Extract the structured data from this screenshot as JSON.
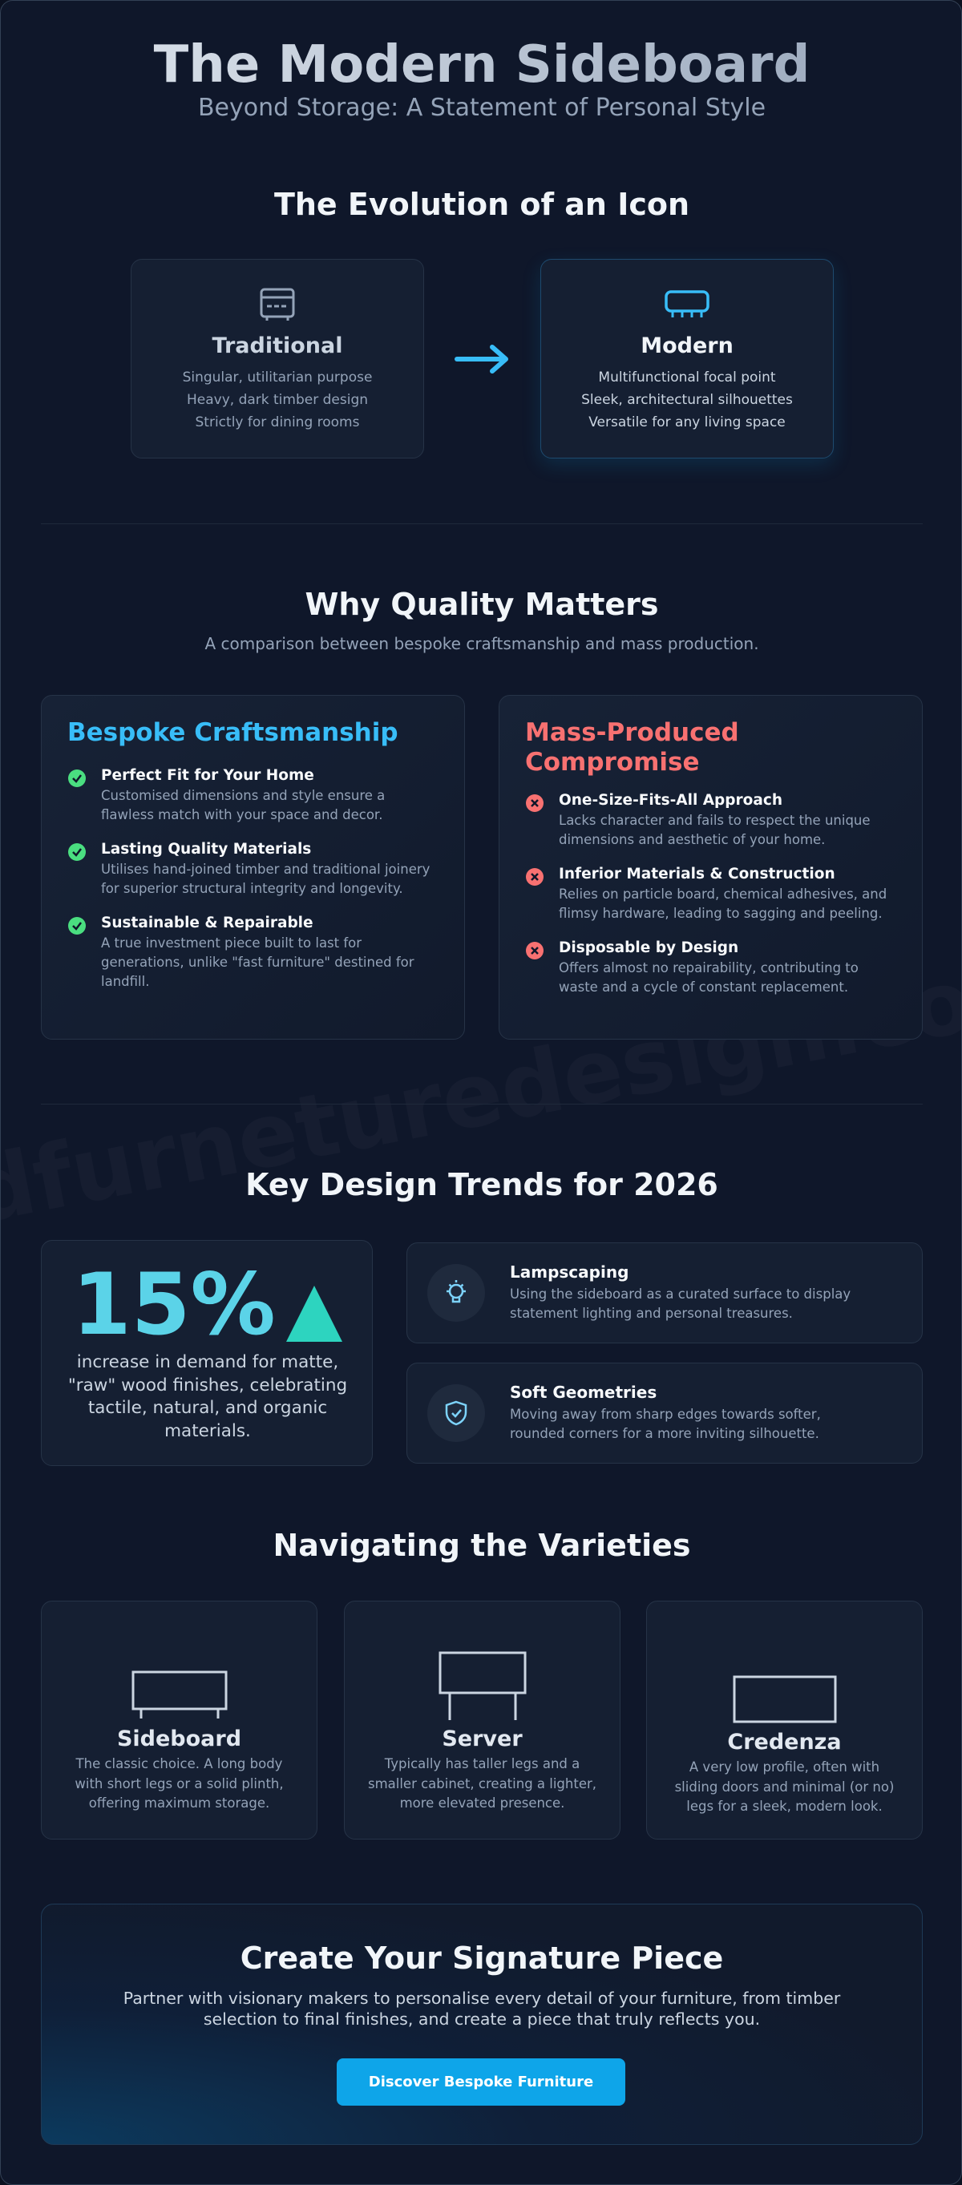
{
  "header": {
    "title": "The Modern Sideboard",
    "subtitle": "Beyond Storage: A Statement of Personal Style"
  },
  "watermark": "andfurneturedesign.co.za",
  "evolution": {
    "title": "The Evolution of an Icon",
    "cards": [
      {
        "title": "Traditional",
        "points": [
          "Singular, utilitarian purpose",
          "Heavy, dark timber design",
          "Strictly for dining rooms"
        ]
      },
      {
        "title": "Modern",
        "points": [
          "Multifunctional focal point",
          "Sleek, architectural silhouettes",
          "Versatile for any living space"
        ]
      }
    ]
  },
  "quality": {
    "title": "Why Quality Matters",
    "subtitle": "A comparison between bespoke craftsmanship and mass production.",
    "columns": [
      {
        "title": "Bespoke Craftsmanship",
        "items": [
          {
            "title": "Perfect Fit for Your Home",
            "text": "Customised dimensions and style ensure a flawless match with your space and decor."
          },
          {
            "title": "Lasting Quality Materials",
            "text": "Utilises hand-joined timber and traditional joinery for superior structural integrity and longevity."
          },
          {
            "title": "Sustainable & Repairable",
            "text": "A true investment piece built to last for generations, unlike \"fast furniture\" destined for landfill."
          }
        ]
      },
      {
        "title": "Mass-Produced Compromise",
        "items": [
          {
            "title": "One-Size-Fits-All Approach",
            "text": "Lacks character and fails to respect the unique dimensions and aesthetic of your home."
          },
          {
            "title": "Inferior Materials & Construction",
            "text": "Relies on particle board, chemical adhesives, and flimsy hardware, leading to sagging and peeling."
          },
          {
            "title": "Disposable by Design",
            "text": "Offers almost no repairability, contributing to waste and a cycle of constant replacement."
          }
        ]
      }
    ]
  },
  "trends": {
    "title": "Key Design Trends for 2026",
    "stat": {
      "value": "15%",
      "text": "increase in demand for matte, \"raw\" wood finishes, celebrating tactile, natural, and organic materials."
    },
    "items": [
      {
        "title": "Lampscaping",
        "text": "Using the sideboard as a curated surface to display statement lighting and personal treasures."
      },
      {
        "title": "Soft Geometries",
        "text": "Moving away from sharp edges towards softer, rounded corners for a more inviting silhouette."
      }
    ]
  },
  "varieties": {
    "title": "Navigating the Varieties",
    "items": [
      {
        "name": "Sideboard",
        "text": "The classic choice. A long body with short legs or a solid plinth, offering maximum storage."
      },
      {
        "name": "Server",
        "text": "Typically has taller legs and a smaller cabinet, creating a lighter, more elevated presence."
      },
      {
        "name": "Credenza",
        "text": "A very low profile, often with sliding doors and minimal (or no) legs for a sleek, modern look."
      }
    ]
  },
  "cta": {
    "title": "Create Your Signature Piece",
    "text": "Partner with visionary makers to personalise every detail of your furniture, from timber selection to final finishes, and create a piece that truly reflects you.",
    "button": "Discover Bespoke Furniture"
  }
}
